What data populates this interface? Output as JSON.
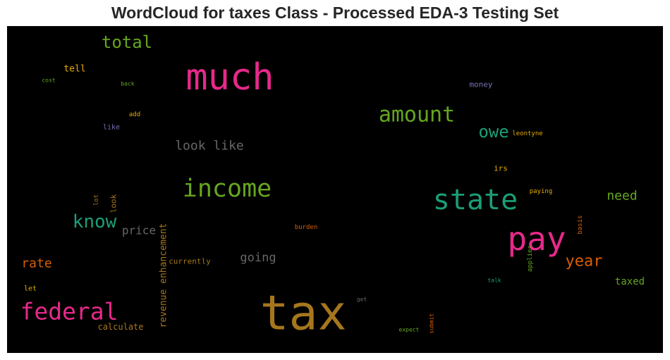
{
  "chart_data": {
    "type": "wordcloud",
    "title": "WordCloud for taxes Class - Processed EDA-3 Testing Set",
    "background": "#000000",
    "words": [
      {
        "text": "tax",
        "weight": 68,
        "color": "#a6761d",
        "orientation": "horizontal"
      },
      {
        "text": "much",
        "weight": 52,
        "color": "#e7298a",
        "orientation": "horizontal"
      },
      {
        "text": "pay",
        "weight": 46,
        "color": "#e7298a",
        "orientation": "horizontal"
      },
      {
        "text": "state",
        "weight": 40,
        "color": "#1b9e77",
        "orientation": "horizontal"
      },
      {
        "text": "income",
        "weight": 35,
        "color": "#66a61e",
        "orientation": "horizontal"
      },
      {
        "text": "federal",
        "weight": 33,
        "color": "#e7298a",
        "orientation": "horizontal"
      },
      {
        "text": "amount",
        "weight": 30,
        "color": "#66a61e",
        "orientation": "horizontal"
      },
      {
        "text": "know",
        "weight": 26,
        "color": "#1b9e77",
        "orientation": "horizontal"
      },
      {
        "text": "owe",
        "weight": 24,
        "color": "#1b9e77",
        "orientation": "horizontal"
      },
      {
        "text": "total",
        "weight": 24,
        "color": "#66a61e",
        "orientation": "horizontal"
      },
      {
        "text": "year",
        "weight": 22,
        "color": "#d95f02",
        "orientation": "horizontal"
      },
      {
        "text": "look like",
        "weight": 18,
        "color": "#666666",
        "orientation": "horizontal"
      },
      {
        "text": "need",
        "weight": 18,
        "color": "#66a61e",
        "orientation": "horizontal"
      },
      {
        "text": "rate",
        "weight": 18,
        "color": "#d95f02",
        "orientation": "horizontal"
      },
      {
        "text": "going",
        "weight": 17,
        "color": "#666666",
        "orientation": "horizontal"
      },
      {
        "text": "price",
        "weight": 16,
        "color": "#666666",
        "orientation": "horizontal"
      },
      {
        "text": "revenue enhancement",
        "weight": 13,
        "color": "#a6761d",
        "orientation": "vertical"
      },
      {
        "text": "taxed",
        "weight": 14,
        "color": "#66a61e",
        "orientation": "horizontal"
      },
      {
        "text": "tell",
        "weight": 13,
        "color": "#e6ab02",
        "orientation": "horizontal"
      },
      {
        "text": "calculate",
        "weight": 12,
        "color": "#a6761d",
        "orientation": "horizontal"
      },
      {
        "text": "currently",
        "weight": 11,
        "color": "#a6761d",
        "orientation": "horizontal"
      },
      {
        "text": "irs",
        "weight": 11,
        "color": "#e6ab02",
        "orientation": "horizontal"
      },
      {
        "text": "money",
        "weight": 11,
        "color": "#7570b3",
        "orientation": "horizontal"
      },
      {
        "text": "look",
        "weight": 11,
        "color": "#a6761d",
        "orientation": "vertical"
      },
      {
        "text": "like",
        "weight": 10,
        "color": "#7570b3",
        "orientation": "horizontal"
      },
      {
        "text": "let",
        "weight": 10,
        "color": "#e6ab02",
        "orientation": "horizontal"
      },
      {
        "text": "burden",
        "weight": 9,
        "color": "#d95f02",
        "orientation": "horizontal"
      },
      {
        "text": "paying",
        "weight": 9,
        "color": "#e6ab02",
        "orientation": "horizontal"
      },
      {
        "text": "leontyne",
        "weight": 9,
        "color": "#e6ab02",
        "orientation": "horizontal"
      },
      {
        "text": "add",
        "weight": 9,
        "color": "#e6ab02",
        "orientation": "horizontal"
      },
      {
        "text": "basis",
        "weight": 9,
        "color": "#d95f02",
        "orientation": "vertical"
      },
      {
        "text": "applies",
        "weight": 9,
        "color": "#66a61e",
        "orientation": "vertical"
      },
      {
        "text": "lot",
        "weight": 9,
        "color": "#a6761d",
        "orientation": "vertical"
      },
      {
        "text": "back",
        "weight": 8,
        "color": "#66a61e",
        "orientation": "horizontal"
      },
      {
        "text": "cost",
        "weight": 8,
        "color": "#66a61e",
        "orientation": "horizontal"
      },
      {
        "text": "get",
        "weight": 8,
        "color": "#666666",
        "orientation": "horizontal"
      },
      {
        "text": "talk",
        "weight": 8,
        "color": "#1b9e77",
        "orientation": "horizontal"
      },
      {
        "text": "expect",
        "weight": 8,
        "color": "#66a61e",
        "orientation": "horizontal"
      },
      {
        "text": "submit",
        "weight": 8,
        "color": "#d95f02",
        "orientation": "vertical"
      }
    ]
  }
}
